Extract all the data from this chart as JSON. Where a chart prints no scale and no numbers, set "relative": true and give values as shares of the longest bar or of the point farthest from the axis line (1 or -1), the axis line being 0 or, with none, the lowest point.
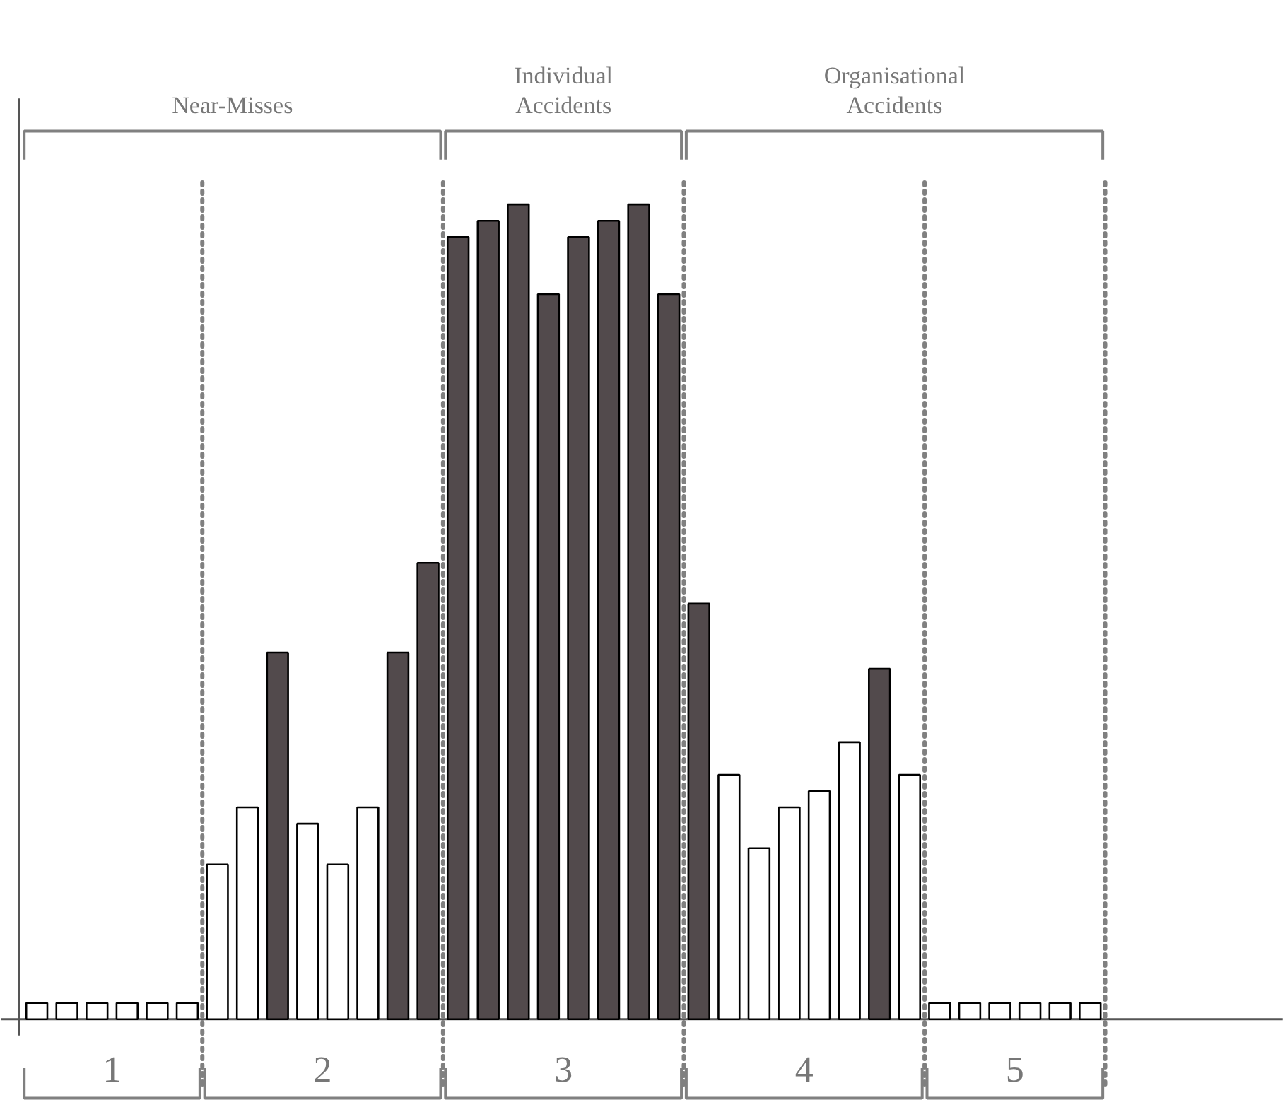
{
  "chart_data": {
    "type": "bar",
    "relative": true,
    "grid": false,
    "categories": [
      null,
      null,
      null,
      null,
      null,
      null,
      null,
      null,
      null,
      null,
      null,
      null,
      null,
      null,
      null,
      null,
      null,
      null,
      null,
      null,
      null,
      null,
      null,
      null,
      null,
      null,
      null,
      null,
      null,
      null,
      null,
      null,
      null,
      null,
      null,
      null
    ],
    "values": [
      0.02,
      0.02,
      0.02,
      0.02,
      0.02,
      0.02,
      0.19,
      0.26,
      0.45,
      0.24,
      0.19,
      0.26,
      0.45,
      0.56,
      0.96,
      0.98,
      1,
      0.89,
      0.96,
      0.98,
      1,
      0.89,
      0.51,
      0.3,
      0.21,
      0.26,
      0.28,
      0.34,
      0.43,
      0.3,
      0.02,
      0.02,
      0.02,
      0.02,
      0.02,
      0.02
    ],
    "colors": [
      "#ffffff",
      "#ffffff",
      "#ffffff",
      "#ffffff",
      "#ffffff",
      "#ffffff",
      "#ffffff",
      "#ffffff",
      "#524a4c",
      "#ffffff",
      "#ffffff",
      "#ffffff",
      "#524a4c",
      "#524a4c",
      "#524a4c",
      "#524a4c",
      "#524a4c",
      "#524a4c",
      "#524a4c",
      "#524a4c",
      "#524a4c",
      "#524a4c",
      "#524a4c",
      "#ffffff",
      "#ffffff",
      "#ffffff",
      "#ffffff",
      "#ffffff",
      "#524a4c",
      "#ffffff",
      "#ffffff",
      "#ffffff",
      "#ffffff",
      "#ffffff",
      "#ffffff",
      "#ffffff"
    ],
    "annotations": [
      "Near-Misses",
      "Individual\nAccidents",
      "Organisational\nAccidents",
      "1",
      "2",
      "3",
      "4",
      "5"
    ]
  }
}
